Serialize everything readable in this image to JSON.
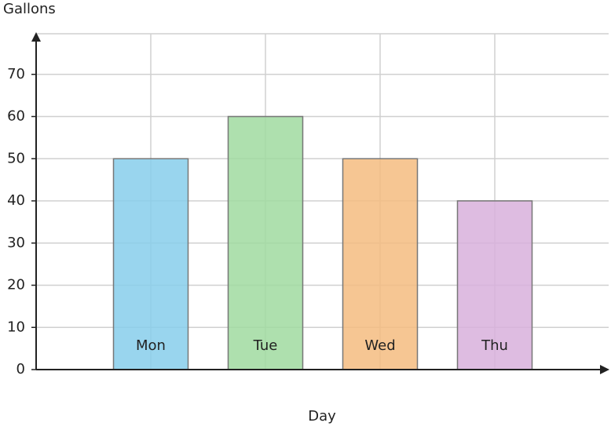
{
  "chart_data": {
    "type": "bar",
    "y_label": "Gallons",
    "x_label": "Day",
    "categories": [
      "Mon",
      "Tue",
      "Wed",
      "Thu"
    ],
    "values": [
      50,
      60,
      50,
      40
    ],
    "colors": [
      "#87ceeb",
      "#a0dba0",
      "#f4bc80",
      "#d8b0dc"
    ],
    "ylim": [
      0,
      80
    ],
    "yticks": [
      0,
      10,
      20,
      30,
      40,
      50,
      60,
      70
    ],
    "grid": true
  }
}
